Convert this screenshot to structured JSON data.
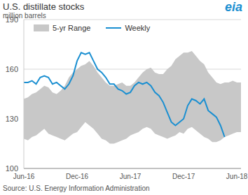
{
  "chart_data": {
    "type": "line",
    "title": "U.S. distillate stocks",
    "subtitle": "million barrels",
    "source": "Source: U.S. Energy Information Administration",
    "logo": "eia",
    "categories": [
      "Jun-16",
      null,
      null,
      null,
      null,
      null,
      null,
      null,
      null,
      null,
      null,
      null,
      null,
      "Dec-16",
      null,
      null,
      null,
      null,
      null,
      null,
      null,
      null,
      null,
      null,
      null,
      null,
      "Jun-17",
      null,
      null,
      null,
      null,
      null,
      null,
      null,
      null,
      null,
      null,
      null,
      null,
      "Dec-17",
      null,
      null,
      null,
      null,
      null,
      null,
      null,
      null,
      null,
      null,
      null,
      null,
      "Jun-18",
      null
    ],
    "series": [
      {
        "name": "5-yr Range",
        "type": "area",
        "color": "#c8c8c8",
        "low": [
          118,
          117,
          119,
          120,
          122,
          124,
          121,
          120,
          119,
          118,
          117,
          119,
          121,
          122,
          125,
          128,
          126,
          124,
          121,
          118,
          117,
          115,
          115,
          116,
          117,
          118,
          120,
          121,
          122,
          124,
          125,
          124,
          121,
          120,
          119,
          118,
          119,
          120,
          122,
          121,
          124,
          125,
          123,
          121,
          119,
          118,
          116,
          116,
          117,
          119,
          120,
          121,
          122,
          122
        ],
        "high": [
          142,
          143,
          145,
          146,
          148,
          150,
          149,
          146,
          145,
          147,
          150,
          155,
          158,
          160,
          162,
          163,
          165,
          162,
          158,
          155,
          152,
          150,
          150,
          151,
          152,
          150,
          150,
          152,
          155,
          158,
          160,
          161,
          158,
          157,
          157,
          160,
          162,
          166,
          168,
          170,
          170,
          171,
          168,
          165,
          163,
          158,
          155,
          152,
          151,
          152,
          152,
          153,
          152,
          152
        ]
      },
      {
        "name": "Weekly",
        "type": "line",
        "color": "#1a8fd1",
        "values": [
          152,
          152,
          153,
          151,
          155,
          156,
          155,
          151,
          152,
          150,
          148,
          151,
          156,
          165,
          170,
          169,
          170,
          165,
          160,
          158,
          155,
          151,
          151,
          148,
          147,
          145,
          146,
          150,
          152,
          151,
          152,
          150,
          146,
          144,
          140,
          134,
          128,
          126,
          128,
          130,
          138,
          142,
          141,
          139,
          142,
          135,
          133,
          131,
          126,
          119,
          null,
          null,
          null,
          null
        ]
      }
    ],
    "ylim": [
      100,
      190
    ],
    "yticks": [
      100,
      130,
      160,
      190
    ],
    "grid": true
  }
}
